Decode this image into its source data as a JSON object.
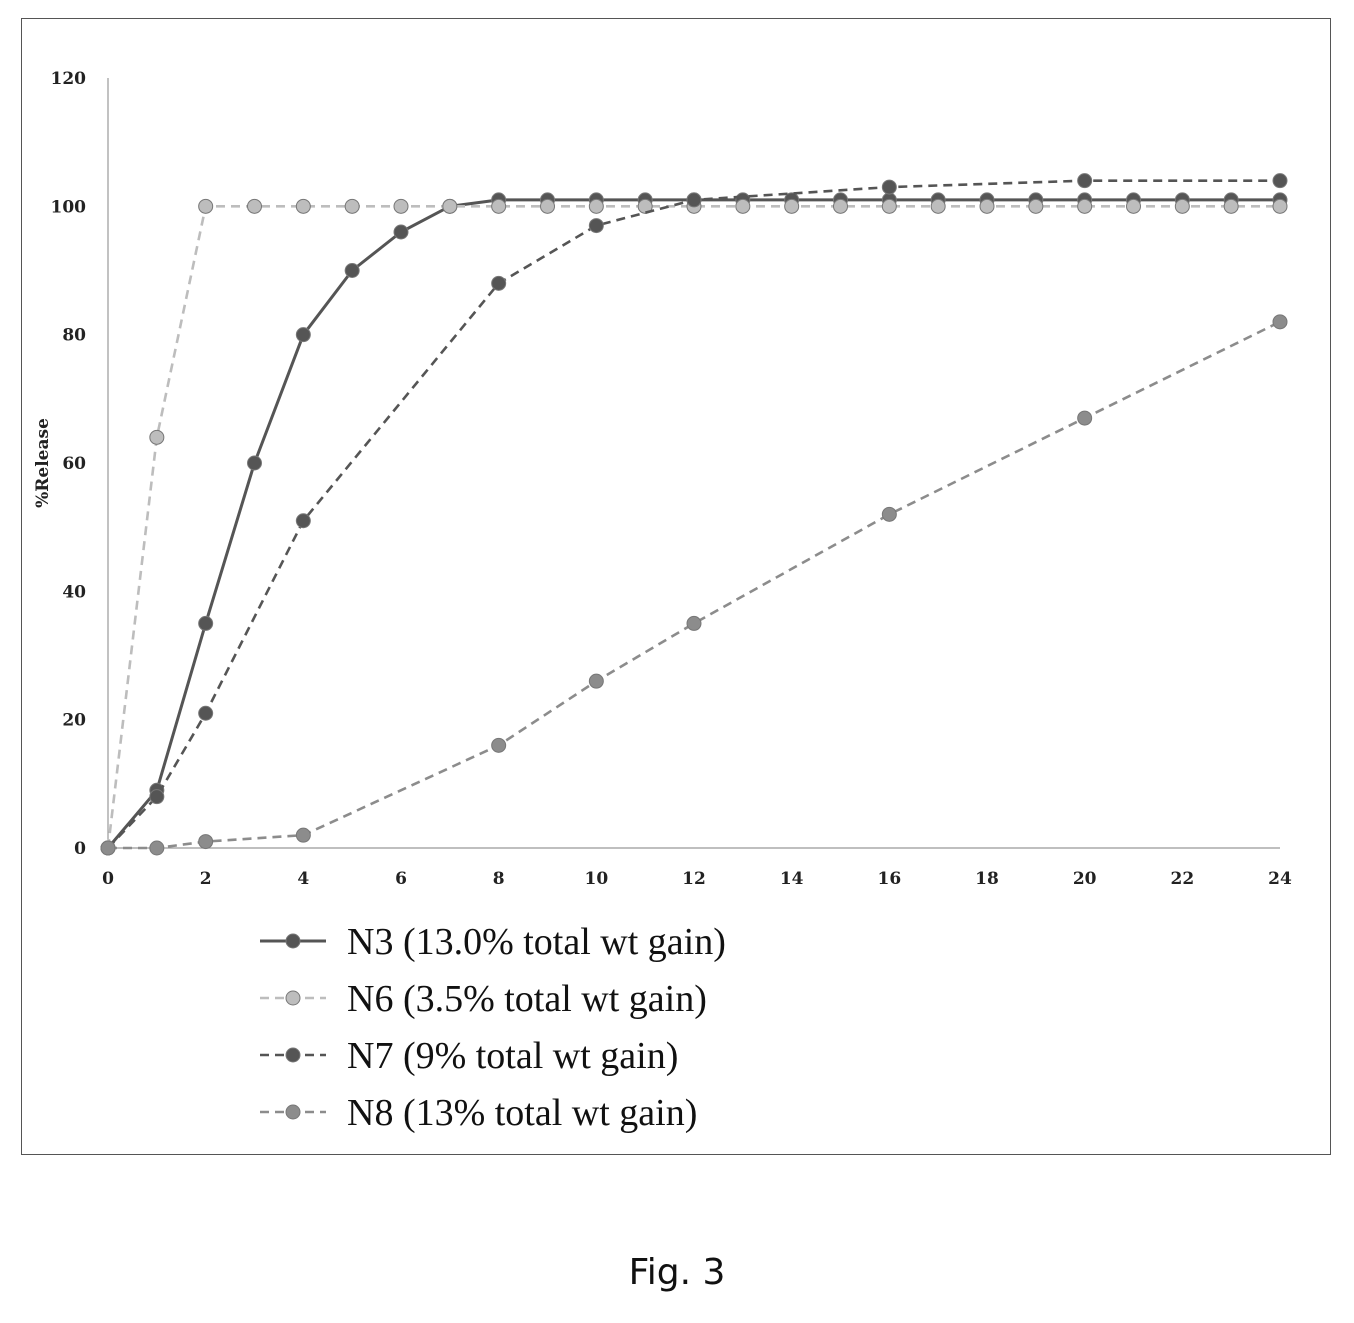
{
  "figure": {
    "caption": "Fig. 3"
  },
  "chart_data": {
    "type": "line",
    "title": "",
    "xlabel": "",
    "ylabel": "%Release",
    "xlim": [
      0,
      24
    ],
    "ylim": [
      0,
      120
    ],
    "x_ticks": [
      0,
      2,
      4,
      6,
      8,
      10,
      12,
      14,
      16,
      18,
      20,
      22,
      24
    ],
    "y_ticks": [
      0,
      20,
      40,
      60,
      80,
      100,
      120
    ],
    "grid": false,
    "legend_position": "bottom-left",
    "series": [
      {
        "name": "N3 (13.0% total wt gain)",
        "color": "#555555",
        "style": "solid",
        "x": [
          0,
          1,
          2,
          3,
          4,
          5,
          6,
          7,
          8,
          9,
          10,
          11,
          12,
          13,
          14,
          15,
          16,
          17,
          18,
          19,
          20,
          21,
          22,
          23,
          24
        ],
        "y": [
          0,
          9,
          35,
          60,
          80,
          90,
          96,
          100,
          101,
          101,
          101,
          101,
          101,
          101,
          101,
          101,
          101,
          101,
          101,
          101,
          101,
          101,
          101,
          101,
          101
        ]
      },
      {
        "name": "N6 (3.5% total wt gain)",
        "color": "#bdbdbd",
        "style": "dashed",
        "x": [
          0,
          1,
          2,
          3,
          4,
          5,
          6,
          7,
          8,
          9,
          10,
          11,
          12,
          13,
          14,
          15,
          16,
          17,
          18,
          19,
          20,
          21,
          22,
          23,
          24
        ],
        "y": [
          0,
          64,
          100,
          100,
          100,
          100,
          100,
          100,
          100,
          100,
          100,
          100,
          100,
          100,
          100,
          100,
          100,
          100,
          100,
          100,
          100,
          100,
          100,
          100,
          100
        ]
      },
      {
        "name": "N7 (9% total wt gain)",
        "color": "#555555",
        "style": "dashed",
        "x": [
          0,
          1,
          2,
          4,
          8,
          10,
          12,
          16,
          20,
          24
        ],
        "y": [
          0,
          8,
          21,
          51,
          88,
          97,
          101,
          103,
          104,
          104
        ]
      },
      {
        "name": "N8 (13% total wt gain)",
        "color": "#8c8c8c",
        "style": "dashed",
        "x": [
          0,
          1,
          2,
          4,
          8,
          10,
          12,
          16,
          20,
          24
        ],
        "y": [
          0,
          0,
          1,
          2,
          16,
          26,
          35,
          52,
          67,
          82
        ]
      }
    ]
  }
}
